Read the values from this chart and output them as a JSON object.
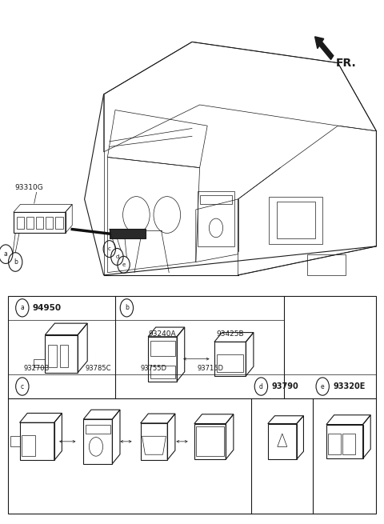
{
  "bg_color": "#ffffff",
  "line_color": "#1a1a1a",
  "fr_label": "FR.",
  "part_label": "93310G",
  "section_a_part": "94950",
  "section_b_parts": [
    "93240A",
    "93425B"
  ],
  "section_c_parts": [
    "93270B",
    "93785C",
    "93755D",
    "93715D"
  ],
  "section_d_part": "93790",
  "section_e_part": "93320E",
  "fig_width": 4.8,
  "fig_height": 6.55,
  "dpi": 100
}
